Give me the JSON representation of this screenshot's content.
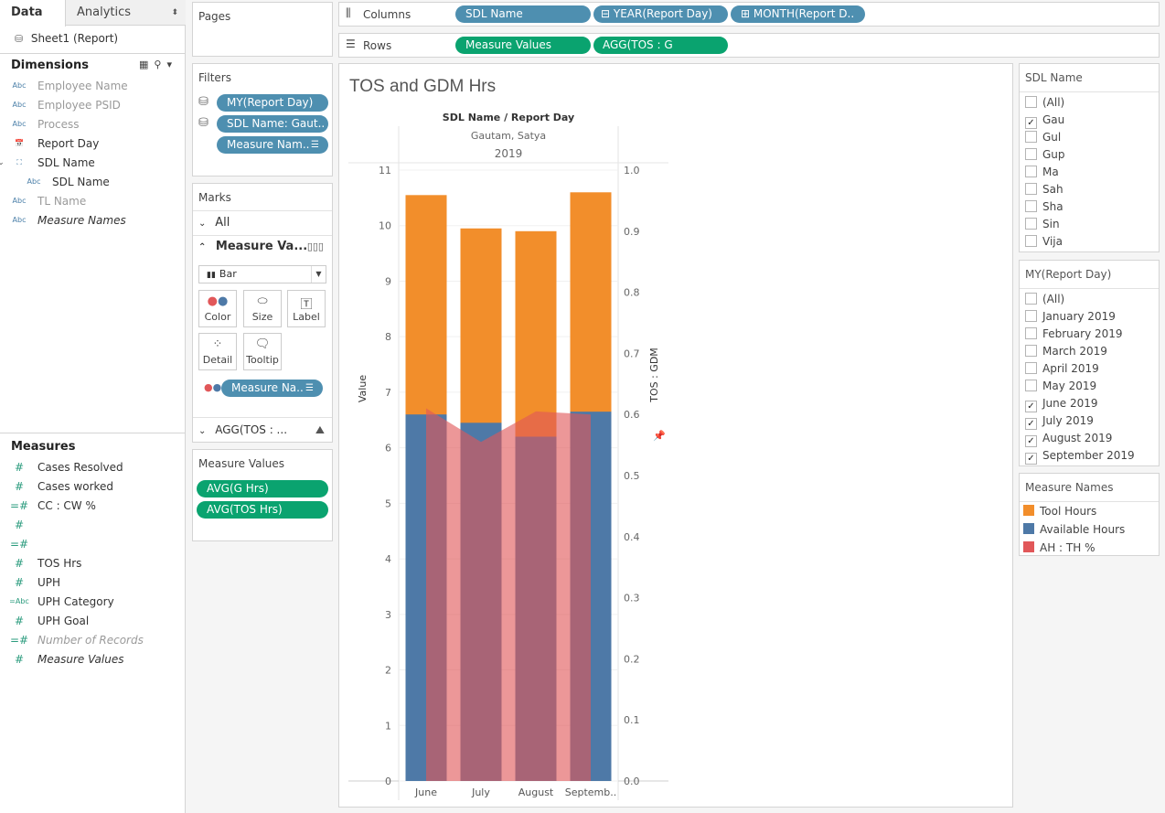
{
  "data_pane": {
    "tab_data": "Data",
    "tab_analytics": "Analytics",
    "tab_arrow": "⬍",
    "datasource": "Sheet1 (Report)",
    "dimensions_title": "Dimensions",
    "dimensions": [
      {
        "icon": "Abc",
        "label": "Employee Name",
        "muted": true
      },
      {
        "icon": "Abc",
        "label": "Employee PSID",
        "muted": true
      },
      {
        "icon": "Abc",
        "label": "Process",
        "muted": true
      },
      {
        "icon": "📅",
        "label": "Report Day",
        "muted": false
      },
      {
        "icon": "⛶",
        "label": "SDL Name",
        "muted": false
      },
      {
        "icon": "Abc",
        "label": "SDL Name",
        "muted": false
      },
      {
        "icon": "Abc",
        "label": "TL Name",
        "muted": true
      },
      {
        "icon": "Abc",
        "label": "Measure Names",
        "muted": false
      }
    ],
    "measures_title": "Measures",
    "measures": [
      {
        "icon": "#",
        "label": "Cases Resolved"
      },
      {
        "icon": "#",
        "label": "Cases worked"
      },
      {
        "icon": "=#",
        "label": "CC : CW %"
      },
      {
        "icon": "#",
        "label": ""
      },
      {
        "icon": "=#",
        "label": ""
      },
      {
        "icon": "#",
        "label": "TOS Hrs"
      },
      {
        "icon": "#",
        "label": "UPH"
      },
      {
        "icon": "=Abc",
        "label": "UPH Category"
      },
      {
        "icon": "#",
        "label": "UPH Goal"
      },
      {
        "icon": "=#",
        "label": "Number of Records"
      },
      {
        "icon": "#",
        "label": "Measure Values"
      }
    ]
  },
  "pages": {
    "title": "Pages"
  },
  "filters": {
    "title": "Filters",
    "pills": [
      "MY(Report Day)",
      "SDL Name: Gaut..",
      "Measure Nam.."
    ]
  },
  "marks": {
    "title": "Marks",
    "all_label": "All",
    "measure_values_label": "Measure Va...",
    "mark_type": "Bar",
    "buttons": {
      "color": "Color",
      "size": "Size",
      "label": "Label",
      "detail": "Detail",
      "tooltip": "Tooltip"
    },
    "color_pill": "Measure Na..",
    "agg_label": "AGG(TOS : ..."
  },
  "measure_values_card": {
    "title": "Measure Values",
    "pills": [
      "AVG(G    Hrs)",
      "AVG(TOS Hrs)"
    ]
  },
  "columns": {
    "label": "Columns",
    "pills": [
      "SDL Name",
      "YEAR(Report Day)",
      "MONTH(Report D.."
    ]
  },
  "rows": {
    "label": "Rows",
    "pills": [
      "Measure Values",
      "AGG(TOS : G"
    ]
  },
  "chart_data": {
    "type": "bar",
    "title": "TOS and GDM Hrs",
    "header_label": "SDL Name  /  Report Day",
    "header_sdl": "Gautam, Satya",
    "header_year": "2019",
    "categories": [
      "June",
      "July",
      "August",
      "Septemb.."
    ],
    "ylabel": "Value",
    "y2label": "TOS : GDM",
    "ylim": [
      0,
      11
    ],
    "y2lim": [
      0,
      1.0
    ],
    "yticks": [
      "0",
      "1",
      "2",
      "3",
      "4",
      "5",
      "6",
      "7",
      "8",
      "9",
      "10",
      "11"
    ],
    "y2ticks": [
      "0.0",
      "0.1",
      "0.2",
      "0.3",
      "0.4",
      "0.5",
      "0.6",
      "0.7",
      "0.8",
      "0.9",
      "1.0"
    ],
    "series": [
      {
        "name": "Tool Hours",
        "color": "#f28e2b",
        "values": [
          10.55,
          9.95,
          9.9,
          10.6
        ]
      },
      {
        "name": "Available Hours",
        "color": "#4e79a7",
        "values": [
          6.6,
          6.45,
          6.2,
          6.65
        ]
      },
      {
        "name": "AH : TH %",
        "color": "#e15759",
        "values": [
          0.61,
          0.555,
          0.605,
          0.6
        ],
        "axis": "secondary",
        "type": "area"
      }
    ]
  },
  "sdl_filter": {
    "title": "SDL Name",
    "items": [
      {
        "label": "(All)",
        "checked": false
      },
      {
        "label": "Gau",
        "checked": true
      },
      {
        "label": "Gul",
        "checked": false
      },
      {
        "label": "Gup",
        "checked": false
      },
      {
        "label": "Ma",
        "checked": false
      },
      {
        "label": "Sah",
        "checked": false
      },
      {
        "label": "Sha",
        "checked": false
      },
      {
        "label": "Sin",
        "checked": false
      },
      {
        "label": "Vija",
        "checked": false
      }
    ]
  },
  "my_filter": {
    "title": "MY(Report Day)",
    "items": [
      {
        "label": "(All)",
        "checked": false
      },
      {
        "label": "January 2019",
        "checked": false
      },
      {
        "label": "February 2019",
        "checked": false
      },
      {
        "label": "March 2019",
        "checked": false
      },
      {
        "label": "April 2019",
        "checked": false
      },
      {
        "label": "May 2019",
        "checked": false
      },
      {
        "label": "June 2019",
        "checked": true
      },
      {
        "label": "July 2019",
        "checked": true
      },
      {
        "label": "August 2019",
        "checked": true
      },
      {
        "label": "September 2019",
        "checked": true
      }
    ]
  },
  "legend": {
    "title": "Measure Names",
    "items": [
      {
        "label": "Tool Hours",
        "color": "#f28e2b"
      },
      {
        "label": "Available Hours",
        "color": "#4e79a7"
      },
      {
        "label": "AH : TH %",
        "color": "#e15759"
      }
    ]
  }
}
